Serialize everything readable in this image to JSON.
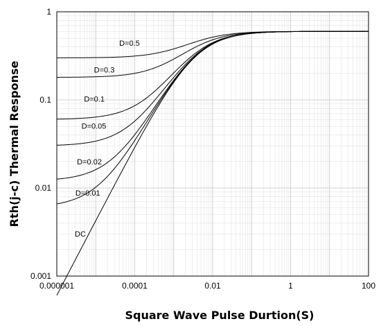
{
  "chart_data": {
    "type": "line",
    "xlabel": "Square Wave Pulse Durtion(S)",
    "ylabel": "Rth(j-c) Thermal Response",
    "x_scale": "log",
    "y_scale": "log",
    "xlim": [
      1e-06,
      100
    ],
    "ylim": [
      0.001,
      1
    ],
    "x_ticks": [
      "0.000001",
      "0.0001",
      "0.01",
      "1",
      "100"
    ],
    "y_ticks": [
      "1",
      "0.1",
      "0.01",
      "0.001"
    ],
    "grid": true,
    "steady_state_value": 0.6,
    "series": [
      {
        "name": "D=0.5",
        "duty": 0.5,
        "x": [
          1e-06,
          0.0001,
          0.001,
          0.01,
          0.1,
          100
        ],
        "y": [
          0.3,
          0.33,
          0.42,
          0.57,
          0.6,
          0.6
        ]
      },
      {
        "name": "D=0.3",
        "duty": 0.3,
        "x": [
          1e-06,
          0.0001,
          0.001,
          0.01,
          0.1,
          100
        ],
        "y": [
          0.18,
          0.23,
          0.36,
          0.56,
          0.6,
          0.6
        ]
      },
      {
        "name": "D=0.1",
        "duty": 0.1,
        "x": [
          1e-06,
          0.0001,
          0.001,
          0.01,
          0.1,
          100
        ],
        "y": [
          0.06,
          0.11,
          0.28,
          0.55,
          0.6,
          0.6
        ]
      },
      {
        "name": "D=0.05",
        "duty": 0.05,
        "x": [
          1e-06,
          0.0001,
          0.001,
          0.01,
          0.1,
          100
        ],
        "y": [
          0.031,
          0.083,
          0.26,
          0.55,
          0.6,
          0.6
        ]
      },
      {
        "name": "D=0.02",
        "duty": 0.02,
        "x": [
          1e-06,
          0.0001,
          0.001,
          0.01,
          0.1,
          100
        ],
        "y": [
          0.013,
          0.067,
          0.25,
          0.55,
          0.6,
          0.6
        ]
      },
      {
        "name": "D=0.01",
        "duty": 0.01,
        "x": [
          1e-06,
          0.0001,
          0.001,
          0.01,
          0.1,
          100
        ],
        "y": [
          0.007,
          0.061,
          0.24,
          0.55,
          0.6,
          0.6
        ]
      },
      {
        "name": "DC",
        "duty": 0,
        "x": [
          1e-06,
          0.0001,
          0.001,
          0.01,
          0.1,
          100
        ],
        "y": [
          0.0012,
          0.055,
          0.24,
          0.55,
          0.6,
          0.6
        ]
      }
    ]
  }
}
